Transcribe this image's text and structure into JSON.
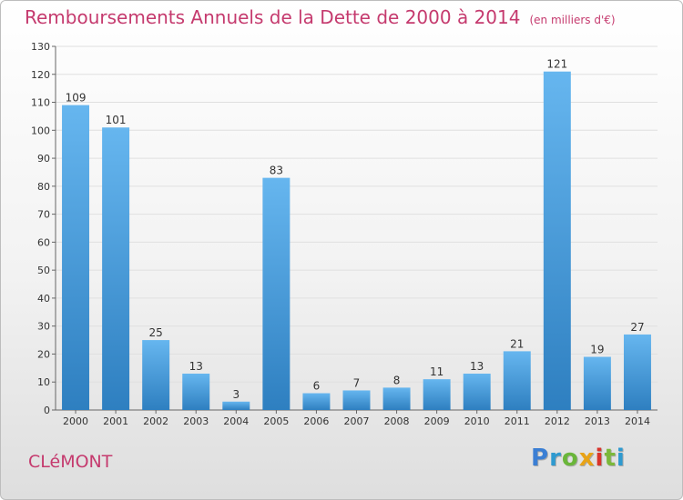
{
  "header": {
    "title": "Remboursements Annuels de la Dette de 2000 à 2014",
    "unit": "(en milliers d'€)"
  },
  "footer": {
    "commune": "CLéMONT",
    "logo_letters": [
      {
        "char": "P",
        "color": "#3b7fd4"
      },
      {
        "char": "r",
        "color": "#2e9ad0"
      },
      {
        "char": "o",
        "color": "#6ab63a"
      },
      {
        "char": "x",
        "color": "#e8a317"
      },
      {
        "char": "i",
        "color": "#d9342b"
      },
      {
        "char": "t",
        "color": "#7bb83a"
      },
      {
        "char": "i",
        "color": "#2e9ad0"
      }
    ]
  },
  "colors": {
    "bar_light": "#66b6ef",
    "bar_dark": "#2e7fc0",
    "accent": "#c53a6e"
  },
  "chart_data": {
    "type": "bar",
    "categories": [
      "2000",
      "2001",
      "2002",
      "2003",
      "2004",
      "2005",
      "2006",
      "2007",
      "2008",
      "2009",
      "2010",
      "2011",
      "2012",
      "2013",
      "2014"
    ],
    "values": [
      109,
      101,
      25,
      13,
      3,
      83,
      6,
      7,
      8,
      11,
      13,
      21,
      121,
      19,
      27
    ],
    "title": "Remboursements Annuels de la Dette de 2000 à 2014",
    "ylim": [
      0,
      130
    ],
    "yticks": [
      0,
      10,
      20,
      30,
      40,
      50,
      60,
      70,
      80,
      90,
      100,
      110,
      120,
      130
    ],
    "grid": true,
    "data_labels": true
  }
}
